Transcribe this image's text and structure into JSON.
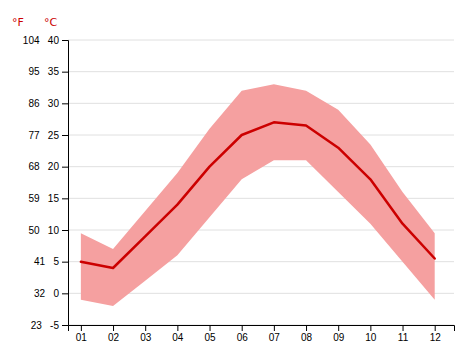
{
  "chart_data": {
    "type": "line",
    "x": [
      1,
      2,
      3,
      4,
      5,
      6,
      7,
      8,
      9,
      10,
      11,
      12
    ],
    "xlim": [
      0.6,
      12.6
    ],
    "xticks": [
      {
        "value": 1,
        "label": "01"
      },
      {
        "value": 2,
        "label": "02"
      },
      {
        "value": 3,
        "label": "03"
      },
      {
        "value": 4,
        "label": "04"
      },
      {
        "value": 5,
        "label": "05"
      },
      {
        "value": 6,
        "label": "06"
      },
      {
        "value": 7,
        "label": "07"
      },
      {
        "value": 8,
        "label": "08"
      },
      {
        "value": 9,
        "label": "09"
      },
      {
        "value": 10,
        "label": "10"
      },
      {
        "value": 11,
        "label": "11"
      },
      {
        "value": 12,
        "label": "12"
      }
    ],
    "ylim": [
      -5,
      40
    ],
    "yticks": [
      {
        "value": -5,
        "label": "23   -5"
      },
      {
        "value": 0,
        "label": "32   0"
      },
      {
        "value": 5,
        "label": "41   5"
      },
      {
        "value": 10,
        "label": "50   10"
      },
      {
        "value": 15,
        "label": "59   15"
      },
      {
        "value": 20,
        "label": "68   20"
      },
      {
        "value": 25,
        "label": "77   25"
      },
      {
        "value": 30,
        "label": "86   30"
      },
      {
        "value": 35,
        "label": "95   35"
      },
      {
        "value": 40,
        "label": "104   40"
      }
    ],
    "grid": true,
    "series": [
      {
        "type": "band",
        "color": "#f5a0a0",
        "low": [
          -1.0,
          -2.0,
          2.0,
          6.0,
          12.0,
          18.0,
          21.0,
          21.0,
          16.0,
          11.0,
          5.0,
          -1.0
        ],
        "high": [
          9.5,
          7.0,
          13.0,
          19.0,
          26.0,
          32.0,
          33.0,
          32.0,
          29.0,
          23.5,
          16.0,
          9.5
        ]
      },
      {
        "type": "line",
        "color": "#cc0000",
        "values": [
          5.0,
          4.0,
          9.0,
          14.0,
          20.0,
          25.0,
          27.0,
          26.5,
          23.0,
          18.0,
          11.0,
          5.5
        ]
      }
    ],
    "annotations": [
      {
        "text": "°F",
        "color": "#cc0000"
      },
      {
        "text": "°C",
        "color": "#cc0000"
      }
    ]
  }
}
